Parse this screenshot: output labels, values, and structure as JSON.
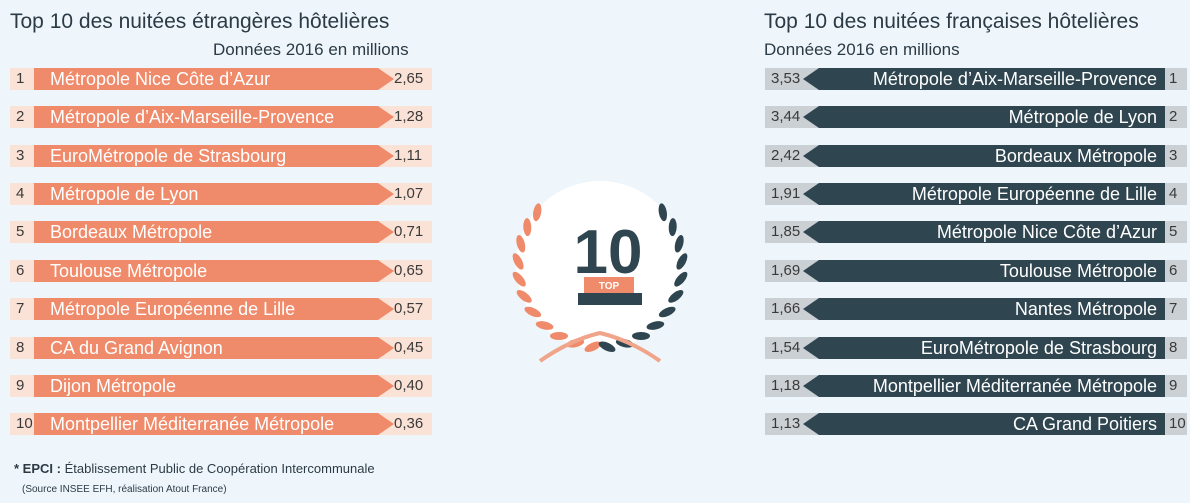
{
  "left_panel": {
    "title": "Top 10 des nuitées étrangères hôtelières",
    "subtitle": "Données 2016 en millions"
  },
  "right_panel": {
    "title": "Top 10 des nuitées françaises hôtelières",
    "subtitle": "Données 2016 en millions"
  },
  "badge": {
    "number": "10",
    "label": "TOP"
  },
  "footnote": {
    "abbr": "* EPCI :",
    "text": " Établissement Public de Coopération Intercommunale"
  },
  "source": "(Source INSEE EFH, réalisation Atout France)",
  "colors": {
    "foreign": "#ef8a6a",
    "french": "#2f4550",
    "foreign_bg": "#fbe2d6",
    "french_bg": "#cbd0d4"
  },
  "chart_data": [
    {
      "type": "bar",
      "title": "Top 10 des nuitées étrangères hôtelières",
      "subtitle": "Données 2016 en millions",
      "ranks": [
        "1",
        "2",
        "3",
        "4",
        "5",
        "6",
        "7",
        "8",
        "9",
        "10"
      ],
      "categories": [
        "Métropole Nice Côte d’Azur",
        "Métropole d’Aix-Marseille-Provence",
        "EuroMétropole de Strasbourg",
        "Métropole de Lyon",
        "Bordeaux Métropole",
        "Toulouse Métropole",
        "Métropole Européenne de Lille",
        "CA du Grand Avignon",
        "Dijon Métropole",
        "Montpellier Méditerranée Métropole"
      ],
      "values": [
        2.65,
        1.28,
        1.11,
        1.07,
        0.71,
        0.65,
        0.57,
        0.45,
        0.4,
        0.36
      ],
      "value_labels": [
        "2,65",
        "1,28",
        "1,11",
        "1,07",
        "0,71",
        "0,65",
        "0,57",
        "0,45",
        "0,40",
        "0,36"
      ]
    },
    {
      "type": "bar",
      "title": "Top 10 des nuitées françaises hôtelières",
      "subtitle": "Données 2016 en millions",
      "ranks": [
        "1",
        "2",
        "3",
        "4",
        "5",
        "6",
        "7",
        "8",
        "9",
        "10"
      ],
      "categories": [
        "Métropole d’Aix-Marseille-Provence",
        "Métropole de Lyon",
        "Bordeaux Métropole",
        "Métropole Européenne de Lille",
        "Métropole Nice Côte d’Azur",
        "Toulouse Métropole",
        "Nantes Métropole",
        "EuroMétropole de Strasbourg",
        "Montpellier Méditerranée Métropole",
        "CA Grand Poitiers"
      ],
      "values": [
        3.53,
        3.44,
        2.42,
        1.91,
        1.85,
        1.69,
        1.66,
        1.54,
        1.18,
        1.13
      ],
      "value_labels": [
        "3,53",
        "3,44",
        "2,42",
        "1,91",
        "1,85",
        "1,69",
        "1,66",
        "1,54",
        "1,18",
        "1,13"
      ]
    }
  ]
}
